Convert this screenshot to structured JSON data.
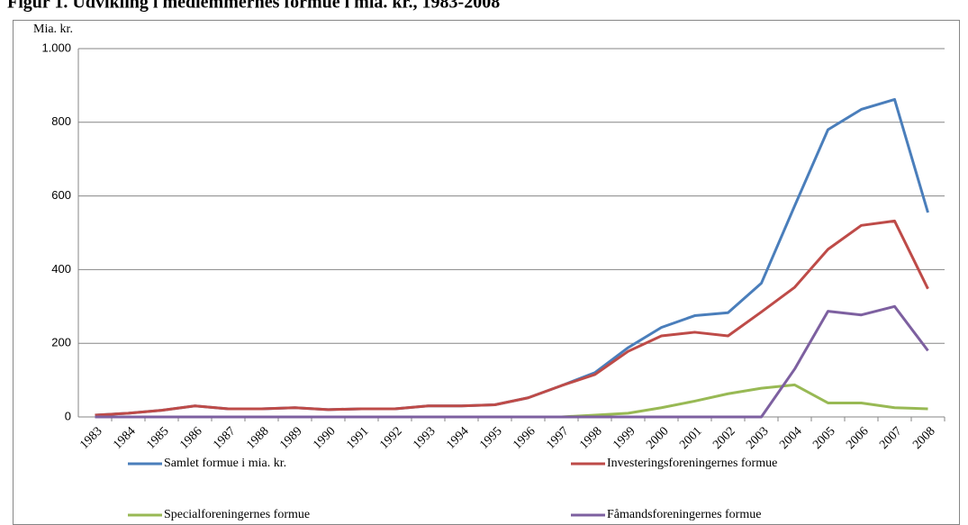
{
  "chart_data": {
    "type": "line",
    "title": "Figur 1. Udvikling i medlemmernes formue i mia. kr., 1983-2008",
    "y_axis_label": "Mia. kr.",
    "categories": [
      "1983",
      "1984",
      "1985",
      "1986",
      "1987",
      "1988",
      "1989",
      "1990",
      "1991",
      "1992",
      "1993",
      "1994",
      "1995",
      "1996",
      "1997",
      "1998",
      "1999",
      "2000",
      "2001",
      "2002",
      "2003",
      "2004",
      "2005",
      "2006",
      "2007",
      "2008"
    ],
    "series": [
      {
        "name": "Samlet formue i mia. kr.",
        "color": "#4a7ebb",
        "values": [
          5,
          10,
          18,
          30,
          22,
          22,
          25,
          20,
          22,
          22,
          30,
          30,
          33,
          52,
          85,
          120,
          188,
          243,
          275,
          283,
          363,
          573,
          780,
          835,
          862,
          555
        ]
      },
      {
        "name": "Investeringsforeningernes formue",
        "color": "#be4b48",
        "values": [
          5,
          10,
          18,
          30,
          22,
          22,
          25,
          20,
          22,
          22,
          30,
          30,
          33,
          52,
          85,
          115,
          178,
          220,
          230,
          220,
          285,
          352,
          455,
          520,
          532,
          348
        ]
      },
      {
        "name": "Specialforeningernes formue",
        "color": "#98b954",
        "values": [
          0,
          0,
          0,
          0,
          0,
          0,
          0,
          0,
          0,
          0,
          0,
          0,
          0,
          0,
          0,
          5,
          10,
          25,
          43,
          63,
          78,
          87,
          38,
          38,
          25,
          22
        ]
      },
      {
        "name": "Fåmandsforeningernes formue",
        "color": "#7d60a0",
        "values": [
          0,
          0,
          0,
          0,
          0,
          0,
          0,
          0,
          0,
          0,
          0,
          0,
          0,
          0,
          0,
          0,
          0,
          0,
          0,
          0,
          0,
          130,
          287,
          277,
          300,
          180
        ]
      }
    ],
    "ylim": [
      0,
      1000
    ],
    "yticks": [
      0,
      200,
      400,
      600,
      800,
      {
        "value": 1000,
        "label": "1.000"
      }
    ],
    "grid": true,
    "legend": "bottom"
  }
}
